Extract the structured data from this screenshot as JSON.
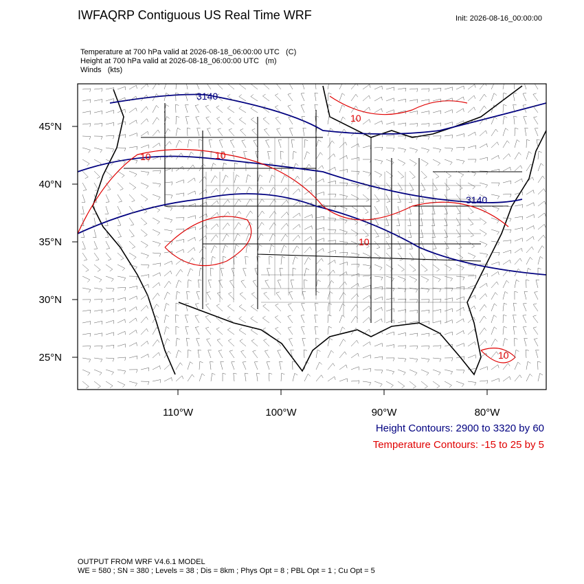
{
  "header": {
    "title": "IWFAQRP Contiguous US Real Time WRF",
    "init": "Init: 2026-08-16_00:00:00"
  },
  "fields": [
    "Temperature at 700 hPa valid at 2026-08-18_06:00:00 UTC   (C)",
    "Height at 700 hPa valid at 2026-08-18_06:00:00 UTC   (m)",
    "Winds   (kts)"
  ],
  "map": {
    "lat_labels": [
      "45°N",
      "40°N",
      "35°N",
      "30°N",
      "25°N"
    ],
    "lon_labels": [
      "110°W",
      "100°W",
      "90°W",
      "80°W"
    ],
    "contour_labels": {
      "height": [
        "3140",
        "3140"
      ],
      "temperature": [
        "10",
        "10",
        "10",
        "10",
        "10"
      ]
    }
  },
  "legend": {
    "height": "Height Contours: 2900 to 3320 by 60",
    "temperature": "Temperature Contours: -15 to 25 by 5"
  },
  "footer": [
    "OUTPUT FROM WRF V4.6.1 MODEL",
    "WE = 580 ; SN = 380 ; Levels = 38 ; Dis = 8km ; Phys Opt = 8 ; PBL Opt = 1 ; Cu Opt = 5"
  ]
}
